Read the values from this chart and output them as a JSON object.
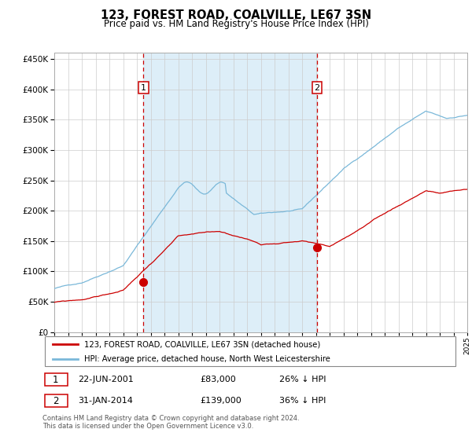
{
  "title": "123, FOREST ROAD, COALVILLE, LE67 3SN",
  "subtitle": "Price paid vs. HM Land Registry's House Price Index (HPI)",
  "legend_line1": "123, FOREST ROAD, COALVILLE, LE67 3SN (detached house)",
  "legend_line2": "HPI: Average price, detached house, North West Leicestershire",
  "footer1": "Contains HM Land Registry data © Crown copyright and database right 2024.",
  "footer2": "This data is licensed under the Open Government Licence v3.0.",
  "annotation1_date": "22-JUN-2001",
  "annotation1_price": "£83,000",
  "annotation1_pct": "26% ↓ HPI",
  "annotation2_date": "31-JAN-2014",
  "annotation2_price": "£139,000",
  "annotation2_pct": "36% ↓ HPI",
  "sale1_year": 2001.47,
  "sale1_value": 83000,
  "sale2_year": 2014.08,
  "sale2_value": 139000,
  "hpi_color": "#7ab8d9",
  "price_color": "#cc0000",
  "span_color": "#ddeef8",
  "plot_bg": "#ffffff",
  "grid_color": "#cccccc",
  "ylim": [
    0,
    460000
  ],
  "yticks": [
    0,
    50000,
    100000,
    150000,
    200000,
    250000,
    300000,
    350000,
    400000,
    450000
  ],
  "xstart": 1995,
  "xend": 2025
}
